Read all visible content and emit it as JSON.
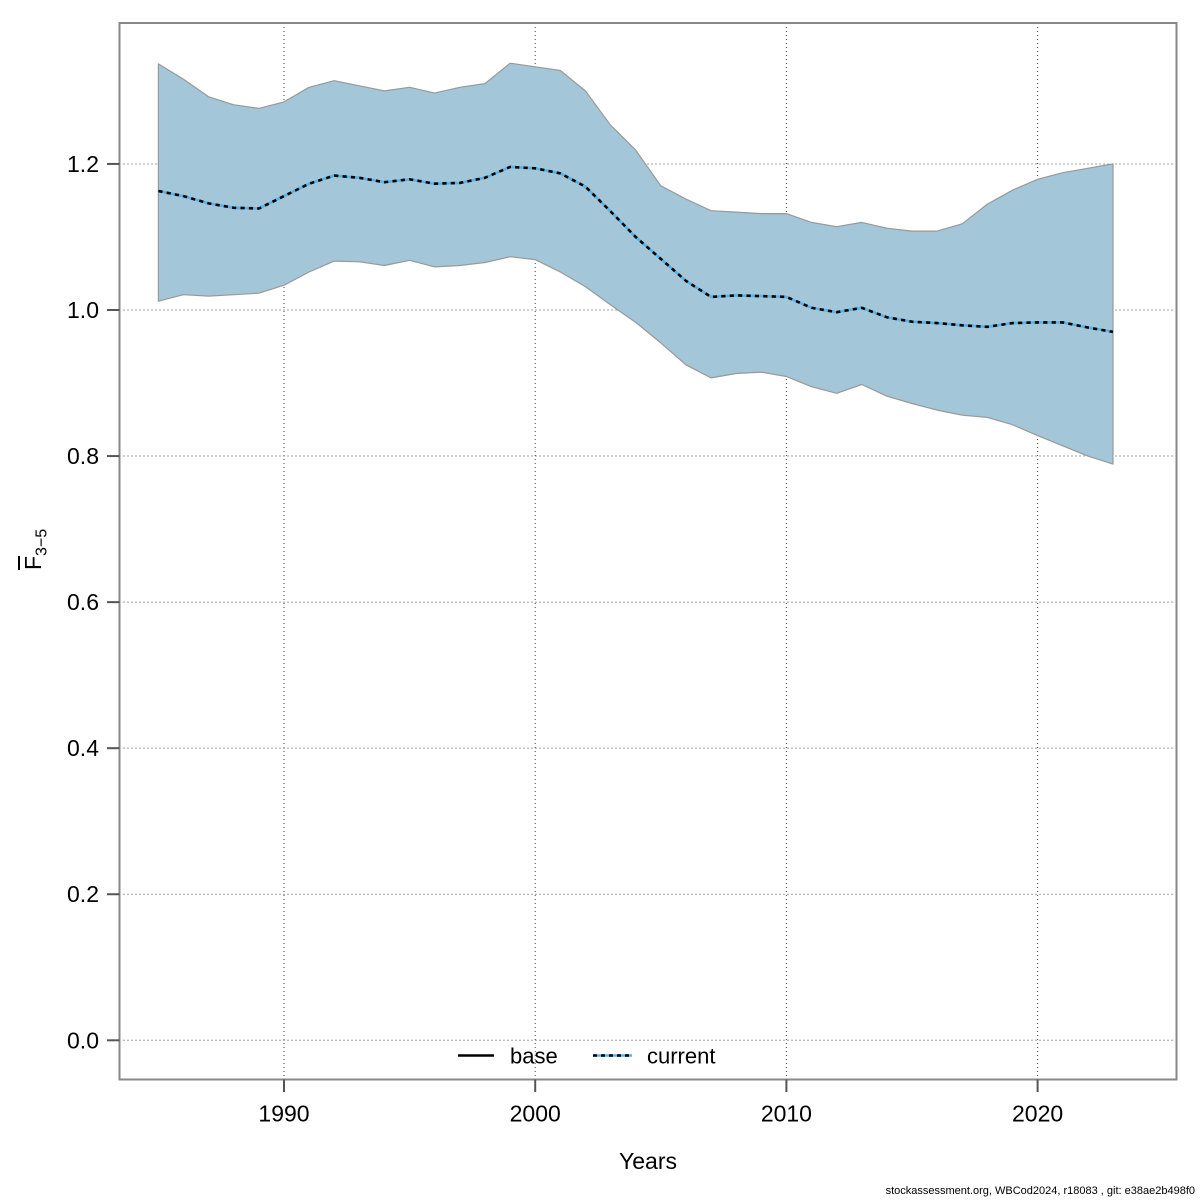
{
  "figure": {
    "footer": "stockassessment.org, WBCod2024, r18083 , git: e38ae2b498f0"
  },
  "chart_data": {
    "type": "line",
    "title": "",
    "xlabel": "Years",
    "ylabel_main": "F",
    "ylabel_sub": "3−5",
    "x": [
      1985,
      1986,
      1987,
      1988,
      1989,
      1990,
      1991,
      1992,
      1993,
      1994,
      1995,
      1996,
      1997,
      1998,
      1999,
      2000,
      2001,
      2002,
      2003,
      2004,
      2005,
      2006,
      2007,
      2008,
      2009,
      2010,
      2011,
      2012,
      2013,
      2014,
      2015,
      2016,
      2017,
      2018,
      2019,
      2020,
      2021,
      2022,
      2023
    ],
    "series": [
      {
        "name": "current",
        "style": "dotted",
        "color": "#56b4e9",
        "dash_color": "#000000",
        "values": [
          1.163,
          1.156,
          1.146,
          1.14,
          1.139,
          1.156,
          1.173,
          1.184,
          1.181,
          1.175,
          1.179,
          1.173,
          1.174,
          1.181,
          1.196,
          1.194,
          1.187,
          1.169,
          1.135,
          1.1,
          1.07,
          1.04,
          1.018,
          1.02,
          1.019,
          1.018,
          1.003,
          0.997,
          1.003,
          0.99,
          0.984,
          0.982,
          0.979,
          0.977,
          0.982,
          0.983,
          0.983,
          0.976,
          0.97
        ]
      }
    ],
    "band": {
      "name": "confidence-interval",
      "fill": "#a3c6d8",
      "edge": "#999999",
      "lower": [
        1.012,
        1.021,
        1.019,
        1.021,
        1.023,
        1.034,
        1.052,
        1.067,
        1.066,
        1.061,
        1.068,
        1.059,
        1.061,
        1.065,
        1.073,
        1.069,
        1.052,
        1.032,
        1.007,
        0.983,
        0.955,
        0.925,
        0.907,
        0.913,
        0.915,
        0.909,
        0.895,
        0.886,
        0.898,
        0.882,
        0.872,
        0.863,
        0.856,
        0.853,
        0.843,
        0.828,
        0.814,
        0.8,
        0.789
      ],
      "upper": [
        1.337,
        1.316,
        1.292,
        1.281,
        1.276,
        1.285,
        1.305,
        1.314,
        1.307,
        1.3,
        1.305,
        1.297,
        1.305,
        1.31,
        1.338,
        1.333,
        1.328,
        1.3,
        1.253,
        1.219,
        1.17,
        1.152,
        1.136,
        1.134,
        1.132,
        1.132,
        1.12,
        1.114,
        1.12,
        1.112,
        1.108,
        1.108,
        1.118,
        1.145,
        1.164,
        1.179,
        1.188,
        1.194,
        1.2
      ]
    },
    "legend": [
      {
        "label": "base",
        "style": "solid",
        "color": "#000000"
      },
      {
        "label": "current",
        "style": "dotted",
        "color": "#56b4e9"
      }
    ],
    "legend_position": "bottom-center-inside",
    "grid": true,
    "x_ticks": [
      1990,
      2000,
      2010,
      2020
    ],
    "y_ticks": [
      0.0,
      0.2,
      0.4,
      0.6,
      0.8,
      1.0,
      1.2
    ],
    "xlim": [
      1983.4,
      2025.5
    ],
    "ylim": [
      -0.054,
      1.393
    ]
  },
  "colors": {
    "background": "#ffffff",
    "plot_border": "#888888",
    "gridline": "#444444",
    "tick": "#555555",
    "text": "#000000"
  }
}
